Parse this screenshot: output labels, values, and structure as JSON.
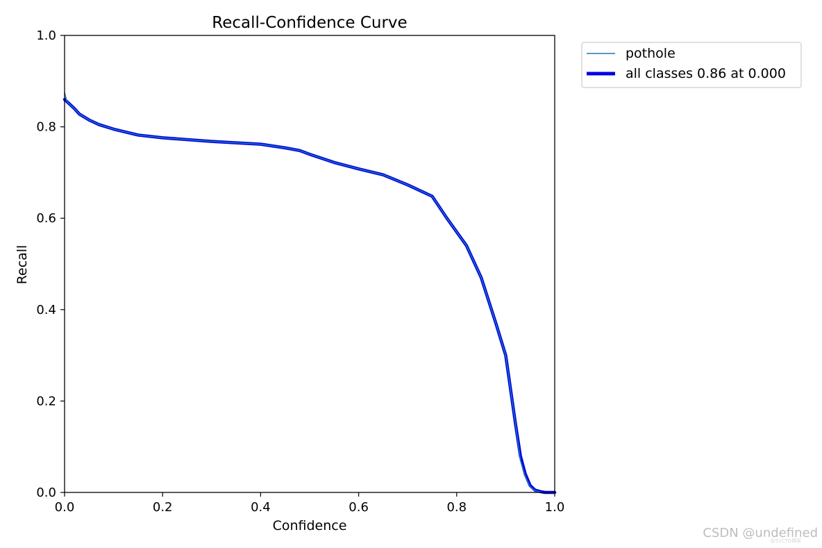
{
  "chart_data": {
    "type": "line",
    "title": "Recall-Confidence Curve",
    "xlabel": "Confidence",
    "ylabel": "Recall",
    "xlim": [
      0,
      1
    ],
    "ylim": [
      0,
      1
    ],
    "xticks": [
      "0.0",
      "0.2",
      "0.4",
      "0.6",
      "0.8",
      "1.0"
    ],
    "yticks": [
      "0.0",
      "0.2",
      "0.4",
      "0.6",
      "0.8",
      "1.0"
    ],
    "grid": false,
    "legend_position": "outside-top-right",
    "series": [
      {
        "name": "pothole",
        "color": "#1f77b4",
        "style": "thin",
        "x": [
          0.0,
          0.005,
          0.02,
          0.03,
          0.05,
          0.07,
          0.1,
          0.15,
          0.2,
          0.25,
          0.3,
          0.35,
          0.4,
          0.45,
          0.48,
          0.5,
          0.55,
          0.6,
          0.65,
          0.7,
          0.75,
          0.78,
          0.82,
          0.85,
          0.88,
          0.9,
          0.92,
          0.93,
          0.94,
          0.95,
          0.96,
          0.97,
          0.98,
          1.0
        ],
        "y": [
          0.875,
          0.855,
          0.84,
          0.828,
          0.815,
          0.805,
          0.795,
          0.782,
          0.776,
          0.772,
          0.768,
          0.765,
          0.762,
          0.754,
          0.748,
          0.74,
          0.722,
          0.708,
          0.695,
          0.673,
          0.648,
          0.6,
          0.54,
          0.47,
          0.37,
          0.3,
          0.15,
          0.07,
          0.035,
          0.012,
          0.004,
          0.001,
          0.0,
          0.0
        ]
      },
      {
        "name": "all classes 0.86 at 0.000",
        "color": "#0000e6",
        "style": "thick",
        "x": [
          0.0,
          0.01,
          0.02,
          0.03,
          0.05,
          0.07,
          0.1,
          0.15,
          0.2,
          0.25,
          0.3,
          0.35,
          0.4,
          0.45,
          0.48,
          0.5,
          0.55,
          0.6,
          0.65,
          0.7,
          0.75,
          0.78,
          0.82,
          0.85,
          0.88,
          0.9,
          0.92,
          0.93,
          0.94,
          0.95,
          0.96,
          0.97,
          0.98,
          1.0
        ],
        "y": [
          0.86,
          0.85,
          0.84,
          0.828,
          0.815,
          0.805,
          0.795,
          0.782,
          0.776,
          0.772,
          0.768,
          0.765,
          0.762,
          0.754,
          0.748,
          0.74,
          0.722,
          0.708,
          0.695,
          0.673,
          0.648,
          0.6,
          0.54,
          0.47,
          0.37,
          0.3,
          0.15,
          0.08,
          0.04,
          0.015,
          0.005,
          0.002,
          0.0,
          0.0
        ]
      }
    ]
  },
  "watermark": {
    "text": "CSDN @undefined",
    "subtext": "@51CTO博客"
  }
}
